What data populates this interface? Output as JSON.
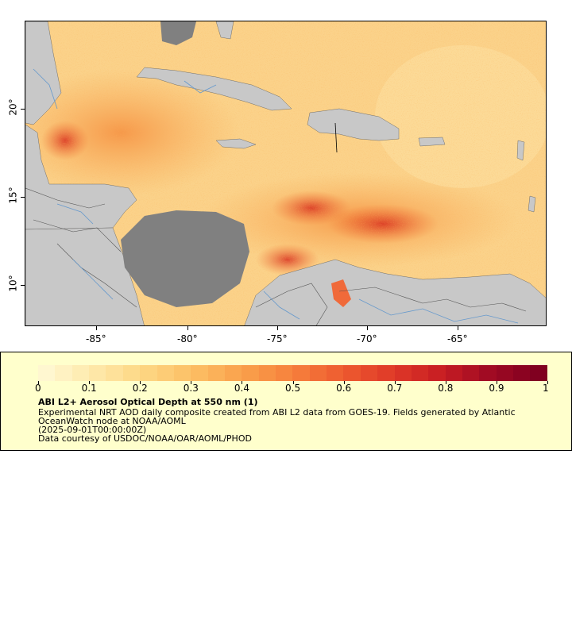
{
  "map": {
    "lon_ticks": [
      "-85°",
      "-80°",
      "-75°",
      "-70°",
      "-65°"
    ],
    "lat_ticks": [
      "20°",
      "15°",
      "10°"
    ]
  },
  "legend": {
    "colorbar_ticks": [
      "0",
      "0.1",
      "0.2",
      "0.3",
      "0.4",
      "0.5",
      "0.6",
      "0.7",
      "0.8",
      "0.9",
      "1"
    ],
    "title": "ABI L2+ Aerosol Optical Depth at 550 nm (1)",
    "description_line1": "Experimental NRT AOD daily composite created from ABI L2 data from GOES-19. Fields generated by Atlantic",
    "description_line2": "OceanWatch node at NOAA/AOML",
    "time": "(2025-09-01T00:00:00Z)",
    "credit": "Data courtesy of USDOC/NOAA/OAR/AOML/PHOD"
  },
  "colors": {
    "land": "#c8c8c8",
    "no_data": "#808080",
    "rivers": "#6699cc",
    "colorbar_low": "#fff7d0",
    "colorbar_high": "#800020",
    "legend_bg": "#ffffcc"
  }
}
